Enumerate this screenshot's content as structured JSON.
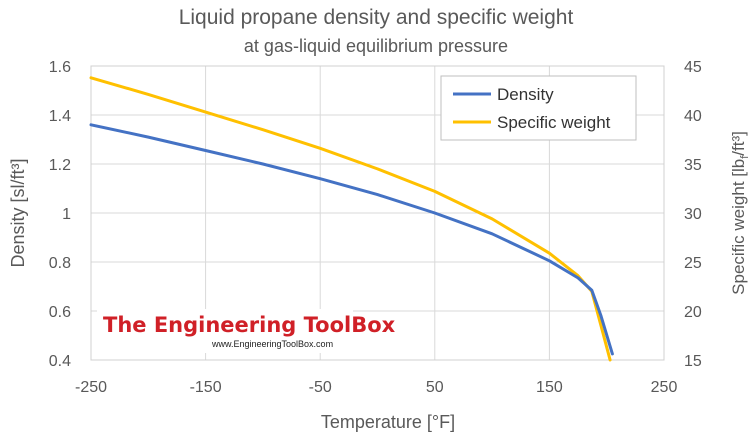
{
  "chart_data": {
    "type": "line",
    "title": "Liquid propane density and specific weight",
    "subtitle": "at gas-liquid equilibrium pressure",
    "xlabel": "Temperature [°F]",
    "ylabel_left": "Density [sl/ft³]",
    "ylabel_right": "Specific weight [lbf/ft³]",
    "ylabel_right_parts": {
      "pre": "Specific weight [lb",
      "sub": "f",
      "post": "/ft³]"
    },
    "xlim": [
      -250,
      250
    ],
    "ylim_left": [
      0.4,
      1.6
    ],
    "ylim_right": [
      15,
      45
    ],
    "xticks": [
      "-250",
      "-150",
      "-50",
      "50",
      "150",
      "250"
    ],
    "yticks_left": [
      "0.4",
      "0.6",
      "0.8",
      "1",
      "1.2",
      "1.4",
      "1.6"
    ],
    "yticks_right": [
      "15",
      "20",
      "25",
      "30",
      "35",
      "40",
      "45"
    ],
    "grid": true,
    "legend_position": "top-right",
    "series": [
      {
        "name": "Density",
        "axis": "left",
        "color": "#4472c4",
        "x": [
          -250,
          -200,
          -150,
          -100,
          -50,
          0,
          50,
          100,
          150,
          175,
          187,
          195,
          205
        ],
        "y": [
          1.36,
          1.31,
          1.255,
          1.2,
          1.14,
          1.075,
          1.0,
          0.915,
          0.805,
          0.735,
          0.685,
          0.58,
          0.425
        ]
      },
      {
        "name": "Specific weight",
        "axis": "right",
        "color": "#ffc000",
        "x": [
          -250,
          -200,
          -150,
          -100,
          -50,
          0,
          50,
          100,
          150,
          175,
          187,
          195,
          203
        ],
        "y": [
          43.8,
          42.1,
          40.3,
          38.5,
          36.6,
          34.5,
          32.2,
          29.4,
          25.9,
          23.6,
          22.0,
          18.5,
          15.0
        ]
      }
    ]
  },
  "watermark": {
    "title": "The Engineering ToolBox",
    "url": "www.EngineeringToolBox.com"
  }
}
